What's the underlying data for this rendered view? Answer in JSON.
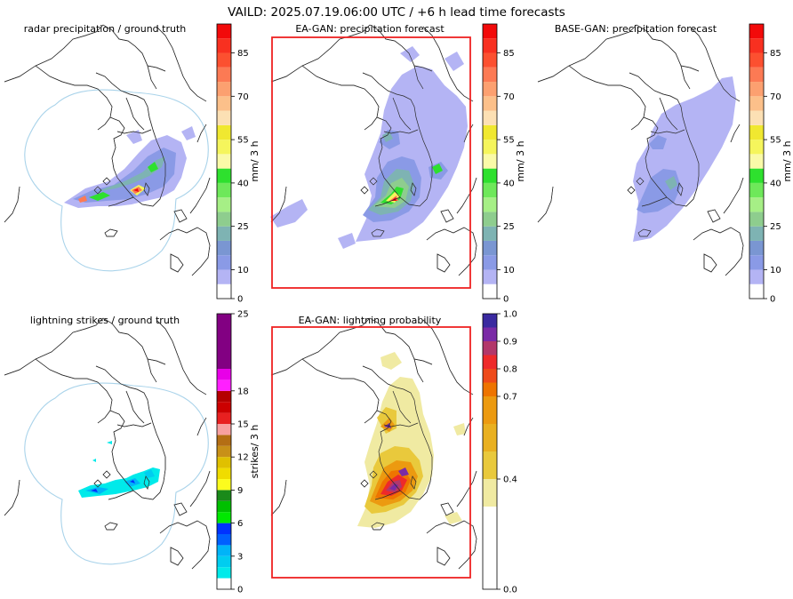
{
  "figure": {
    "suptitle": "VAILD: 2025.07.19.06:00 UTC / +6 h lead time forecasts"
  },
  "panels": [
    {
      "id": "radar",
      "title": "radar precipitation / ground truth",
      "field": "precipitation",
      "observed": true,
      "radar_range_circle": true,
      "highlight_border": false,
      "border_color": ""
    },
    {
      "id": "ea_precip",
      "title": "EA-GAN: precipitation forecast",
      "field": "precipitation",
      "observed": false,
      "radar_range_circle": false,
      "highlight_border": true,
      "border_color": "#ee2222"
    },
    {
      "id": "base_precip",
      "title": "BASE-GAN: precipitation forecast",
      "field": "precipitation",
      "observed": false,
      "radar_range_circle": false,
      "highlight_border": false,
      "border_color": ""
    },
    {
      "id": "lightning",
      "title": "lightning strikes / ground truth",
      "field": "lightning_strikes",
      "observed": true,
      "radar_range_circle": true,
      "highlight_border": false,
      "border_color": ""
    },
    {
      "id": "ea_lightning",
      "title": "EA-GAN: lightning probability",
      "field": "lightning_probability",
      "observed": false,
      "radar_range_circle": false,
      "highlight_border": true,
      "border_color": "#ee2222"
    }
  ],
  "colorbars": {
    "precipitation": {
      "label": "mm/ 3 h",
      "range": [
        0,
        95
      ],
      "tick_values": [
        0,
        10,
        25,
        40,
        55,
        70,
        85
      ],
      "tick_labels": [
        "0",
        "10",
        "25",
        "40",
        "55",
        "70",
        "85"
      ],
      "bounds": [
        0,
        5,
        10,
        15,
        20,
        25,
        30,
        35,
        40,
        45,
        50,
        55,
        60,
        65,
        70,
        75,
        80,
        85,
        90,
        95
      ],
      "colors": [
        "#ffffff",
        "#b4b4f4",
        "#8a9ae6",
        "#7a96d2",
        "#7eb3b3",
        "#8ecd8e",
        "#a6ef86",
        "#6ee85a",
        "#2ee02e",
        "#fafaa8",
        "#f5f55c",
        "#f0e830",
        "#fce0b4",
        "#fcc08a",
        "#fca070",
        "#fc7a54",
        "#fc5030",
        "#f83020",
        "#f20a0a"
      ]
    },
    "lightning_strikes": {
      "label": "strikes/ 3 h",
      "range": [
        0,
        25
      ],
      "tick_values": [
        0,
        3,
        6,
        9,
        12,
        15,
        18,
        25
      ],
      "tick_labels": [
        "0",
        "3",
        "6",
        "9",
        "12",
        "15",
        "18",
        "25"
      ],
      "bounds": [
        0,
        1,
        2,
        3,
        4,
        5,
        6,
        7,
        8,
        9,
        10,
        11,
        12,
        13,
        14,
        15,
        16,
        17,
        18,
        19,
        20,
        25
      ],
      "colors": [
        "#ffffff",
        "#00eaea",
        "#00cdf0",
        "#00b4f8",
        "#0060ff",
        "#0032ff",
        "#00e800",
        "#00c000",
        "#1a8a1a",
        "#fcfc1e",
        "#f0dc00",
        "#e0c000",
        "#c89018",
        "#b46e14",
        "#f8a0a0",
        "#e82020",
        "#cc0000",
        "#b40000",
        "#ff20ff",
        "#e800e8",
        "#820082"
      ]
    },
    "lightning_probability": {
      "label": "",
      "range": [
        0,
        1
      ],
      "tick_values": [
        0.0,
        0.4,
        0.7,
        0.8,
        0.9,
        1.0
      ],
      "tick_labels": [
        "0.0",
        "0.4",
        "0.7",
        "0.8",
        "0.9",
        "1.0"
      ],
      "bounds": [
        0,
        0.3,
        0.4,
        0.5,
        0.6,
        0.7,
        0.75,
        0.8,
        0.85,
        0.9,
        0.95,
        1.0
      ],
      "colors": [
        "#ffffff",
        "#f0eaa2",
        "#e9c93c",
        "#e9b020",
        "#ec9a10",
        "#ee7400",
        "#ee4a1a",
        "#ee2a2a",
        "#b2376a",
        "#7a2aa6",
        "#3a2aa0"
      ]
    }
  }
}
